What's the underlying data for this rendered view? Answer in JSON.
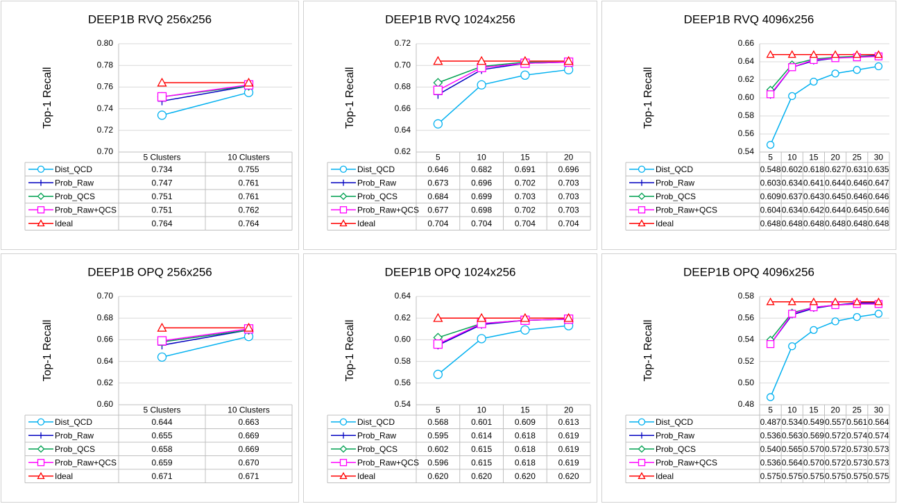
{
  "chart_data": [
    {
      "type": "line",
      "title": "DEEP1B RVQ 256x256",
      "y_label": "Top-1 Recall",
      "categories": [
        "5 Clusters",
        "10 Clusters"
      ],
      "ylim": [
        0.7,
        0.8
      ],
      "yticks": [
        {
          "value": 0.7,
          "label": "0.70"
        },
        0.72,
        0.74,
        0.76,
        0.78,
        {
          "value": 0.8,
          "label": "0.80"
        }
      ],
      "grid": true,
      "series": [
        {
          "name": "Dist_QCD",
          "color": "#00b0f0",
          "marker": "circle",
          "values": [
            0.734,
            0.755
          ]
        },
        {
          "name": "Prob_Raw",
          "color": "#0000c0",
          "marker": "plus",
          "values": [
            0.747,
            0.761
          ]
        },
        {
          "name": "Prob_QCS",
          "color": "#00a050",
          "marker": "diamond",
          "values": [
            0.751,
            0.761
          ]
        },
        {
          "name": "Prob_Raw+QCS",
          "color": "#ff00ff",
          "marker": "square",
          "values": [
            0.751,
            0.762
          ]
        },
        {
          "name": "Ideal",
          "color": "#ff0000",
          "marker": "triangle",
          "values": [
            0.764,
            0.764
          ]
        }
      ]
    },
    {
      "type": "line",
      "title": "DEEP1B RVQ 1024x256",
      "y_label": "Top-1 Recall",
      "categories": [
        "5",
        "10",
        "15",
        "20"
      ],
      "ylim": [
        0.62,
        0.72
      ],
      "yticks": [
        0.62,
        0.64,
        0.66,
        0.68,
        {
          "value": 0.7,
          "label": "0.70"
        },
        0.72
      ],
      "grid": true,
      "series": [
        {
          "name": "Dist_QCD",
          "color": "#00b0f0",
          "marker": "circle",
          "values": [
            0.646,
            0.682,
            0.691,
            0.696
          ]
        },
        {
          "name": "Prob_Raw",
          "color": "#0000c0",
          "marker": "plus",
          "values": [
            0.673,
            0.696,
            0.702,
            0.703
          ]
        },
        {
          "name": "Prob_QCS",
          "color": "#00a050",
          "marker": "diamond",
          "values": [
            0.684,
            0.699,
            0.703,
            0.703
          ]
        },
        {
          "name": "Prob_Raw+QCS",
          "color": "#ff00ff",
          "marker": "square",
          "values": [
            0.677,
            0.698,
            0.702,
            0.703
          ]
        },
        {
          "name": "Ideal",
          "color": "#ff0000",
          "marker": "triangle",
          "values": [
            0.704,
            0.704,
            0.704,
            0.704
          ]
        }
      ]
    },
    {
      "type": "line",
      "title": "DEEP1B RVQ 4096x256",
      "y_label": "Top-1 Recall",
      "categories": [
        "5",
        "10",
        "15",
        "20",
        "25",
        "30"
      ],
      "ylim": [
        0.54,
        0.66
      ],
      "yticks": [
        0.54,
        0.56,
        0.58,
        {
          "value": 0.6,
          "label": "0.60"
        },
        0.62,
        0.64,
        0.66
      ],
      "grid": true,
      "series": [
        {
          "name": "Dist_QCD",
          "color": "#00b0f0",
          "marker": "circle",
          "values": [
            0.548,
            0.602,
            0.618,
            0.627,
            0.631,
            0.635
          ]
        },
        {
          "name": "Prob_Raw",
          "color": "#0000c0",
          "marker": "plus",
          "values": [
            0.603,
            0.634,
            0.641,
            0.644,
            0.646,
            0.647
          ]
        },
        {
          "name": "Prob_QCS",
          "color": "#00a050",
          "marker": "diamond",
          "values": [
            0.609,
            0.637,
            0.643,
            0.645,
            0.646,
            0.646
          ]
        },
        {
          "name": "Prob_Raw+QCS",
          "color": "#ff00ff",
          "marker": "square",
          "values": [
            0.604,
            0.634,
            0.642,
            0.644,
            0.645,
            0.646
          ]
        },
        {
          "name": "Ideal",
          "color": "#ff0000",
          "marker": "triangle",
          "values": [
            0.648,
            0.648,
            0.648,
            0.648,
            0.648,
            0.648
          ]
        }
      ]
    },
    {
      "type": "line",
      "title": "DEEP1B OPQ 256x256",
      "y_label": "Top-1 Recall",
      "categories": [
        "5 Clusters",
        "10 Clusters"
      ],
      "ylim": [
        0.6,
        0.7
      ],
      "yticks": [
        {
          "value": 0.6,
          "label": "0.60"
        },
        0.62,
        0.64,
        0.66,
        0.68,
        {
          "value": 0.7,
          "label": "0.70"
        }
      ],
      "grid": true,
      "series": [
        {
          "name": "Dist_QCD",
          "color": "#00b0f0",
          "marker": "circle",
          "values": [
            0.644,
            0.663
          ]
        },
        {
          "name": "Prob_Raw",
          "color": "#0000c0",
          "marker": "plus",
          "values": [
            0.655,
            0.669
          ]
        },
        {
          "name": "Prob_QCS",
          "color": "#00a050",
          "marker": "diamond",
          "values": [
            0.658,
            0.669
          ]
        },
        {
          "name": "Prob_Raw+QCS",
          "color": "#ff00ff",
          "marker": "square",
          "values": [
            0.659,
            0.67
          ],
          "value_labels": [
            "0.659",
            "0.670"
          ]
        },
        {
          "name": "Ideal",
          "color": "#ff0000",
          "marker": "triangle",
          "values": [
            0.671,
            0.671
          ]
        }
      ]
    },
    {
      "type": "line",
      "title": "DEEP1B OPQ 1024x256",
      "y_label": "Top-1 Recall",
      "categories": [
        "5",
        "10",
        "15",
        "20"
      ],
      "ylim": [
        0.54,
        0.64
      ],
      "yticks": [
        0.54,
        0.56,
        0.58,
        {
          "value": 0.6,
          "label": "0.60"
        },
        0.62,
        0.64
      ],
      "grid": true,
      "series": [
        {
          "name": "Dist_QCD",
          "color": "#00b0f0",
          "marker": "circle",
          "values": [
            0.568,
            0.601,
            0.609,
            0.613
          ]
        },
        {
          "name": "Prob_Raw",
          "color": "#0000c0",
          "marker": "plus",
          "values": [
            0.595,
            0.614,
            0.618,
            0.619
          ]
        },
        {
          "name": "Prob_QCS",
          "color": "#00a050",
          "marker": "diamond",
          "values": [
            0.602,
            0.615,
            0.618,
            0.619
          ]
        },
        {
          "name": "Prob_Raw+QCS",
          "color": "#ff00ff",
          "marker": "square",
          "values": [
            0.596,
            0.615,
            0.618,
            0.619
          ]
        },
        {
          "name": "Ideal",
          "color": "#ff0000",
          "marker": "triangle",
          "values": [
            0.62,
            0.62,
            0.62,
            0.62
          ],
          "value_labels": [
            "0.620",
            "0.620",
            "0.620",
            "0.620"
          ]
        }
      ]
    },
    {
      "type": "line",
      "title": "DEEP1B OPQ 4096x256",
      "y_label": "Top-1 Recall",
      "categories": [
        "5",
        "10",
        "15",
        "20",
        "25",
        "30"
      ],
      "ylim": [
        0.48,
        0.58
      ],
      "yticks": [
        0.48,
        {
          "value": 0.5,
          "label": "0.50"
        },
        0.52,
        0.54,
        0.56,
        0.58
      ],
      "grid": true,
      "series": [
        {
          "name": "Dist_QCD",
          "color": "#00b0f0",
          "marker": "circle",
          "values": [
            0.487,
            0.534,
            0.549,
            0.557,
            0.561,
            0.564
          ]
        },
        {
          "name": "Prob_Raw",
          "color": "#0000c0",
          "marker": "plus",
          "values": [
            0.536,
            0.563,
            0.569,
            0.572,
            0.574,
            0.574
          ]
        },
        {
          "name": "Prob_QCS",
          "color": "#00a050",
          "marker": "diamond",
          "values": [
            0.54,
            0.565,
            0.57,
            0.572,
            0.573,
            0.573
          ],
          "value_labels": [
            "0.540",
            "0.565",
            "0.570",
            "0.572",
            "0.573",
            "0.573"
          ]
        },
        {
          "name": "Prob_Raw+QCS",
          "color": "#ff00ff",
          "marker": "square",
          "values": [
            0.536,
            0.564,
            0.57,
            0.572,
            0.573,
            0.573
          ],
          "value_labels": [
            "0.536",
            "0.564",
            "0.570",
            "0.572",
            "0.573",
            "0.573"
          ]
        },
        {
          "name": "Ideal",
          "color": "#ff0000",
          "marker": "triangle",
          "values": [
            0.575,
            0.575,
            0.575,
            0.575,
            0.575,
            0.575
          ]
        }
      ]
    }
  ]
}
